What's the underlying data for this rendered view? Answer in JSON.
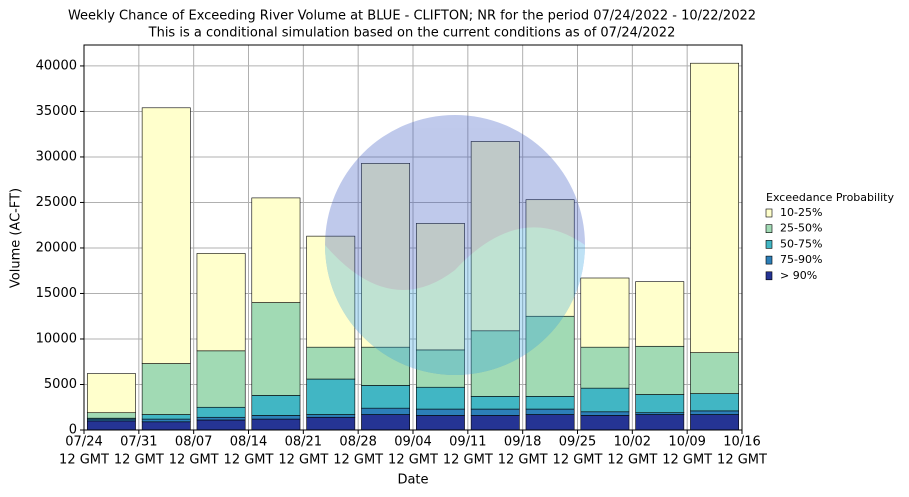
{
  "chart_data": {
    "type": "stacked_bar",
    "title": "Weekly Chance of Exceeding River Volume at BLUE - CLIFTON; NR for the period 07/24/2022 - 10/22/2022",
    "subtitle": "This is a conditional simulation based on the current conditions as of 07/24/2022",
    "xlabel": "Date",
    "ylabel": "Volume (AC-FT)",
    "legend_title": "Exceedance Probability",
    "legend_position": "right",
    "grid": true,
    "x": [
      0.5,
      1.5,
      2.5,
      3.5,
      4.5,
      5.5,
      6.5,
      7.5,
      8.5,
      9.5,
      10.5,
      11.5
    ],
    "xlim": [
      0,
      12
    ],
    "xticks": [
      {
        "value": 0,
        "label": "07/24",
        "sublabel": "12 GMT"
      },
      {
        "value": 1,
        "label": "07/31",
        "sublabel": "12 GMT"
      },
      {
        "value": 2,
        "label": "08/07",
        "sublabel": "12 GMT"
      },
      {
        "value": 3,
        "label": "08/14",
        "sublabel": "12 GMT"
      },
      {
        "value": 4,
        "label": "08/21",
        "sublabel": "12 GMT"
      },
      {
        "value": 5,
        "label": "08/28",
        "sublabel": "12 GMT"
      },
      {
        "value": 6,
        "label": "09/04",
        "sublabel": "12 GMT"
      },
      {
        "value": 7,
        "label": "09/11",
        "sublabel": "12 GMT"
      },
      {
        "value": 8,
        "label": "09/18",
        "sublabel": "12 GMT"
      },
      {
        "value": 9,
        "label": "09/25",
        "sublabel": "12 GMT"
      },
      {
        "value": 10,
        "label": "10/02",
        "sublabel": "12 GMT"
      },
      {
        "value": 11,
        "label": "10/09",
        "sublabel": "12 GMT"
      },
      {
        "value": 12,
        "label": "10/16",
        "sublabel": "12 GMT"
      }
    ],
    "ylim": [
      0,
      42300
    ],
    "yticks": [
      0,
      5000,
      10000,
      15000,
      20000,
      25000,
      30000,
      35000,
      40000
    ],
    "series": [
      {
        "name": "> 90%",
        "color": "#253494",
        "values": [
          1000,
          900,
          1100,
          1200,
          1400,
          1700,
          1600,
          1600,
          1700,
          1600,
          1700,
          1700
        ]
      },
      {
        "name": "75-90%",
        "color": "#2c7fb8",
        "values": [
          200,
          300,
          300,
          400,
          300,
          700,
          700,
          700,
          600,
          400,
          200,
          400
        ]
      },
      {
        "name": "50-75%",
        "color": "#41b6c4",
        "values": [
          100,
          500,
          1100,
          2200,
          3900,
          2500,
          2400,
          1400,
          1400,
          2600,
          2000,
          1900
        ]
      },
      {
        "name": "25-50%",
        "color": "#a1dab4",
        "values": [
          600,
          5600,
          6200,
          10200,
          3500,
          4200,
          4100,
          7200,
          8800,
          4500,
          5300,
          4500
        ]
      },
      {
        "name": "10-25%",
        "color": "#ffffcc",
        "values": [
          4300,
          28100,
          10700,
          11500,
          12200,
          20200,
          13900,
          20800,
          12800,
          7600,
          7100,
          31800
        ]
      }
    ]
  }
}
